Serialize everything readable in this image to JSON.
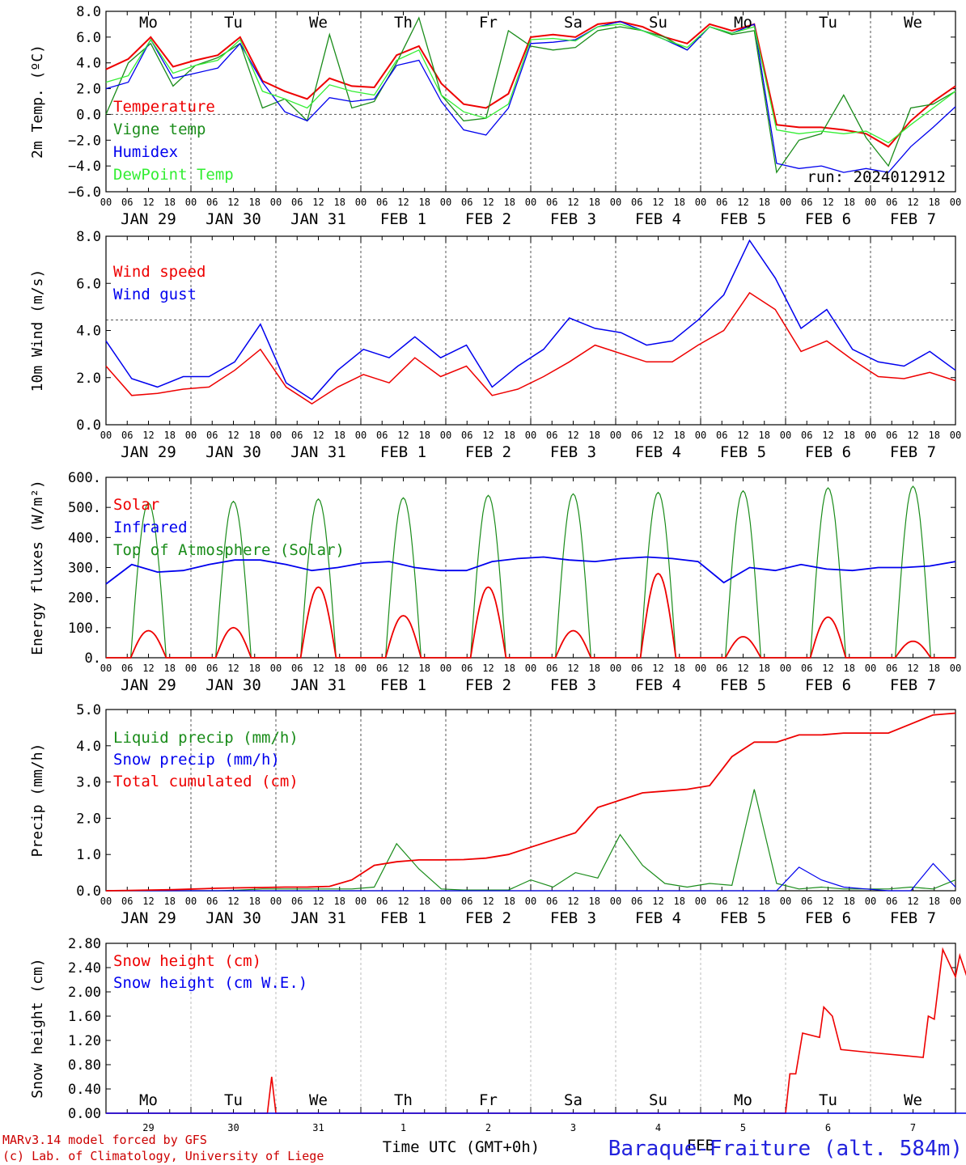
{
  "colors": {
    "red": "#ee0000",
    "blue": "#0000ee",
    "green": "#1a8c1a",
    "lightgreen": "#33ee33",
    "grid": "#555555",
    "title_blue": "#2222dd",
    "footer_red": "#cc0000"
  },
  "chart_data": [
    {
      "type": "line",
      "id": "temperature",
      "ylabel": "2m Temp. (ºC)",
      "ylim": [
        -6,
        8
      ],
      "yticks": [
        "8.0",
        "6.0",
        "4.0",
        "2.0",
        "0.0",
        "−2.0",
        "−4.0",
        "−6.0"
      ],
      "reference_line": 0,
      "x_start": "2024-01-29 00:00",
      "x_step_hours": 6,
      "day_names": [
        "Mo",
        "Tu",
        "We",
        "Th",
        "Fr",
        "Sa",
        "Su",
        "Mo",
        "Tu",
        "We"
      ],
      "day_colors": [
        "#000000",
        "#000000",
        "#000000",
        "#000000",
        "#000000",
        "#ee0000",
        "#ee0000",
        "#000000",
        "#000000",
        "#000000"
      ],
      "annotation": "run: 2024012912",
      "series": [
        {
          "name": "Temperature",
          "color": "#ee0000",
          "values": [
            3.5,
            4.3,
            6.0,
            3.7,
            4.2,
            4.6,
            6.0,
            2.6,
            1.8,
            1.2,
            2.8,
            2.2,
            2.1,
            4.6,
            5.3,
            2.4,
            0.8,
            0.5,
            1.6,
            6.0,
            6.2,
            6.0,
            7.0,
            7.2,
            6.8,
            6.0,
            5.5,
            7.0,
            6.5,
            7.0,
            -0.8,
            -1.0,
            -1.0,
            -1.2,
            -1.5,
            -2.5,
            -0.5,
            1.0,
            2.2
          ]
        },
        {
          "name": "Vigne temp",
          "color": "#1a8c1a",
          "values": [
            0.0,
            4.0,
            5.5,
            2.2,
            3.8,
            4.4,
            5.5,
            0.5,
            1.2,
            -0.5,
            6.2,
            0.5,
            1.0,
            4.0,
            7.5,
            1.5,
            -0.5,
            -0.3,
            6.5,
            5.3,
            5.0,
            5.2,
            6.5,
            6.8,
            6.5,
            6.0,
            5.0,
            6.8,
            6.2,
            6.5,
            -4.5,
            -2.0,
            -1.5,
            1.5,
            -1.8,
            -4.0,
            0.5,
            0.8,
            1.8
          ]
        },
        {
          "name": "Humidex",
          "color": "#0000ee",
          "values": [
            2.0,
            2.5,
            5.8,
            2.8,
            3.2,
            3.6,
            5.5,
            2.5,
            0.2,
            -0.5,
            1.3,
            1.0,
            1.2,
            3.8,
            4.2,
            1.0,
            -1.2,
            -1.6,
            0.5,
            5.5,
            5.6,
            5.8,
            6.8,
            7.2,
            6.5,
            5.8,
            5.0,
            6.8,
            6.3,
            7.0,
            -3.8,
            -4.2,
            -4.0,
            -4.5,
            -4.2,
            -4.5,
            -2.5,
            -1.0,
            0.6
          ]
        },
        {
          "name": "DewPoint Temp",
          "color": "#33ee33",
          "values": [
            2.5,
            3.0,
            5.8,
            3.2,
            3.8,
            4.2,
            5.8,
            1.8,
            1.2,
            0.5,
            2.3,
            1.8,
            1.5,
            4.2,
            5.0,
            1.5,
            0.2,
            -0.3,
            0.8,
            5.8,
            5.9,
            5.7,
            6.8,
            7.0,
            6.5,
            5.8,
            5.2,
            6.8,
            6.3,
            6.8,
            -1.2,
            -1.5,
            -1.3,
            -1.5,
            -1.3,
            -2.2,
            -0.8,
            0.5,
            1.8
          ]
        }
      ]
    },
    {
      "type": "line",
      "id": "wind",
      "ylabel": "10m Wind (m/s)",
      "ylim": [
        0,
        9
      ],
      "yticks": [
        "8.0",
        "6.0",
        "4.0",
        "2.0",
        "0.0"
      ],
      "reference_line": 5,
      "series": [
        {
          "name": "Wind speed",
          "color": "#ee0000",
          "values": [
            2.8,
            1.4,
            1.5,
            1.7,
            1.8,
            2.6,
            3.6,
            1.8,
            1.0,
            1.8,
            2.4,
            2.0,
            3.2,
            2.3,
            2.8,
            1.4,
            1.7,
            2.3,
            3.0,
            3.8,
            3.4,
            3.0,
            3.0,
            3.8,
            4.5,
            6.3,
            5.5,
            3.5,
            4.0,
            3.1,
            2.3,
            2.2,
            2.5,
            2.1
          ]
        },
        {
          "name": "Wind gust",
          "color": "#0000ee",
          "values": [
            4.0,
            2.2,
            1.8,
            2.3,
            2.3,
            3.0,
            4.8,
            2.0,
            1.2,
            2.6,
            3.6,
            3.2,
            4.2,
            3.2,
            3.8,
            1.8,
            2.8,
            3.6,
            5.1,
            4.6,
            4.4,
            3.8,
            4.0,
            5.0,
            6.2,
            8.8,
            7.0,
            4.6,
            5.5,
            3.6,
            3.0,
            2.8,
            3.5,
            2.6
          ]
        }
      ]
    },
    {
      "type": "line",
      "id": "energy",
      "ylabel": "Energy fluxes (W/m²)",
      "ylim": [
        0,
        600
      ],
      "yticks": [
        "600.",
        "500.",
        "400.",
        "300.",
        "200.",
        "100.",
        "0."
      ],
      "daily_peaks_toa": [
        515,
        520,
        528,
        532,
        540,
        545,
        550,
        555,
        565,
        570
      ],
      "daily_peaks_solar": [
        90,
        100,
        235,
        140,
        235,
        90,
        280,
        70,
        135,
        55
      ],
      "series": [
        {
          "name": "Solar",
          "color": "#ee0000"
        },
        {
          "name": "Infrared",
          "color": "#0000ee",
          "values": [
            245,
            310,
            285,
            290,
            310,
            325,
            325,
            310,
            290,
            300,
            315,
            320,
            300,
            290,
            290,
            320,
            330,
            335,
            325,
            320,
            330,
            335,
            330,
            320,
            250,
            300,
            290,
            310,
            295,
            290,
            300,
            300,
            305,
            320
          ]
        },
        {
          "name": "Top of Atmosphere (Solar)",
          "color": "#1a8c1a"
        }
      ]
    },
    {
      "type": "line",
      "id": "precip",
      "ylabel": "Precip (mm/h)",
      "ylim": [
        0,
        5
      ],
      "yticks": [
        "5.0",
        "4.0",
        "3.0",
        "2.0",
        "1.0",
        "0.0"
      ],
      "series": [
        {
          "name": "Liquid precip (mm/h)",
          "color": "#1a8c1a",
          "values": [
            0,
            0,
            0,
            0,
            0,
            0,
            0.02,
            0.05,
            0.05,
            0.05,
            0.05,
            0.05,
            0.1,
            1.3,
            0.6,
            0.05,
            0.02,
            0.02,
            0.02,
            0.3,
            0.1,
            0.5,
            0.35,
            1.55,
            0.7,
            0.2,
            0.1,
            0.2,
            0.15,
            2.8,
            0.2,
            0.05,
            0.1,
            0.05,
            0.05,
            0.05,
            0.1,
            0.05,
            0.3
          ]
        },
        {
          "name": "Snow precip (mm/h)",
          "color": "#0000ee",
          "values": [
            0,
            0,
            0,
            0,
            0,
            0,
            0,
            0,
            0,
            0,
            0,
            0,
            0,
            0,
            0,
            0,
            0,
            0,
            0,
            0,
            0,
            0,
            0,
            0,
            0,
            0,
            0,
            0,
            0,
            0,
            0,
            0.65,
            0.3,
            0.1,
            0.05,
            0,
            0,
            0.75,
            0.1
          ]
        },
        {
          "name": "Total cumulated (cm)",
          "color": "#ee0000",
          "values": [
            0,
            0.01,
            0.02,
            0.03,
            0.05,
            0.07,
            0.08,
            0.09,
            0.1,
            0.1,
            0.12,
            0.3,
            0.7,
            0.8,
            0.85,
            0.85,
            0.86,
            0.9,
            1.0,
            1.2,
            1.4,
            1.6,
            2.3,
            2.5,
            2.7,
            2.75,
            2.8,
            2.9,
            3.7,
            4.1,
            4.1,
            4.3,
            4.3,
            4.35,
            4.35,
            4.35,
            4.6,
            4.85,
            4.9
          ]
        }
      ]
    },
    {
      "type": "line",
      "id": "snow",
      "ylabel": "Snow height (cm)",
      "ylim": [
        0,
        2.8
      ],
      "yticks": [
        "2.80",
        "2.40",
        "2.00",
        "1.60",
        "1.20",
        "0.80",
        "0.40",
        "0.00"
      ],
      "day_names": [
        "Mo",
        "Tu",
        "We",
        "Th",
        "Fr",
        "Sa",
        "Su",
        "Mo",
        "Tu",
        "We"
      ],
      "day_colors": [
        "#000000",
        "#000000",
        "#000000",
        "#000000",
        "#000000",
        "#ee0000",
        "#ee0000",
        "#000000",
        "#000000",
        "#000000"
      ],
      "x_day_numbers": [
        "29",
        "30",
        "31",
        "1",
        "2",
        "3",
        "4",
        "5",
        "6",
        "7"
      ],
      "x_month": "FEB",
      "xlabel": "Time UTC (GMT+0h)",
      "series": [
        {
          "name": "Snow height (cm)",
          "color": "#ee0000",
          "values": [
            [
              0,
              0
            ],
            [
              1.9,
              0
            ],
            [
              1.95,
              0.6
            ],
            [
              2.0,
              0
            ],
            [
              8.0,
              0
            ],
            [
              8.05,
              0.65
            ],
            [
              8.12,
              0.65
            ],
            [
              8.2,
              1.32
            ],
            [
              8.4,
              1.25
            ],
            [
              8.45,
              1.75
            ],
            [
              8.55,
              1.6
            ],
            [
              8.65,
              1.05
            ],
            [
              9.0,
              1.0
            ],
            [
              9.4,
              0.95
            ],
            [
              9.62,
              0.92
            ],
            [
              9.68,
              1.6
            ],
            [
              9.75,
              1.55
            ],
            [
              9.85,
              2.7
            ],
            [
              10.0,
              2.25
            ],
            [
              10.05,
              2.6
            ],
            [
              10.35,
              1.35
            ]
          ]
        },
        {
          "name": "Snow height (cm W.E.)",
          "color": "#0000ee",
          "values": [
            [
              0,
              0
            ],
            [
              10.4,
              0
            ]
          ]
        }
      ]
    }
  ],
  "x_axis": {
    "hour_labels": [
      "00",
      "06",
      "12",
      "18"
    ],
    "date_labels": [
      "JAN 29",
      "JAN 30",
      "JAN 31",
      "FEB  1",
      "FEB  2",
      "FEB  3",
      "FEB  4",
      "FEB  5",
      "FEB  6",
      "FEB  7"
    ]
  },
  "footer": {
    "credit_line1": "MARv3.14 model forced by GFS",
    "credit_line2": "(c) Lab. of Climatology, University of Liege",
    "station": "Baraque-Fraiture (alt. 584m)"
  }
}
